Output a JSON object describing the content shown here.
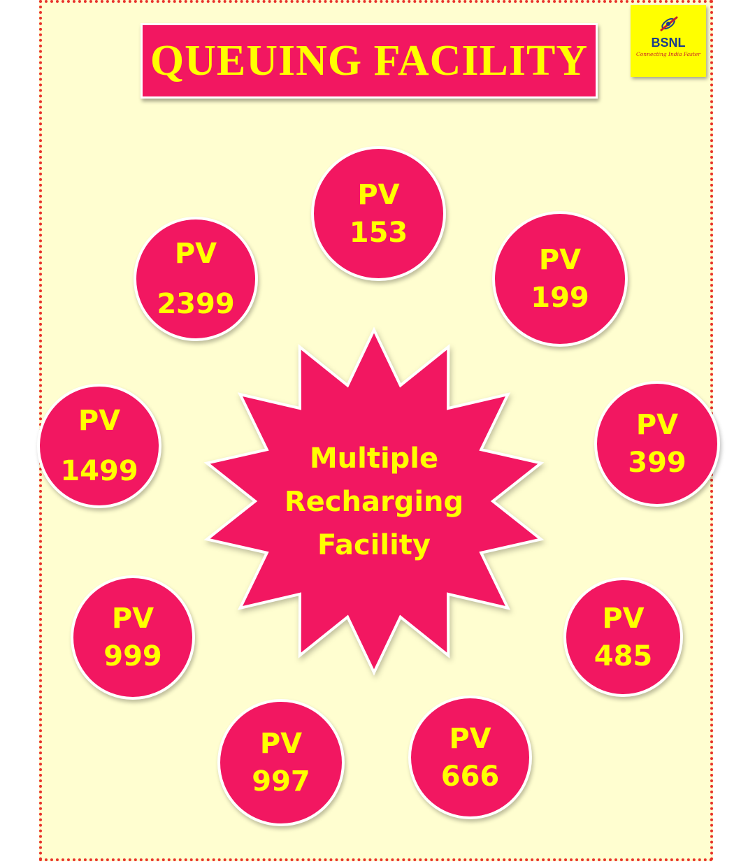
{
  "title": "QUEUING FACILITY",
  "logo": {
    "name": "BSNL",
    "tagline": "Connecting India Faster",
    "icon": "bsnl-logo-icon"
  },
  "center": {
    "lines": [
      "Multiple",
      "Recharging",
      "Facility"
    ]
  },
  "plans": [
    {
      "prefix": "PV",
      "value": "153"
    },
    {
      "prefix": "PV",
      "value": "199"
    },
    {
      "prefix": "PV",
      "value": "399"
    },
    {
      "prefix": "PV",
      "value": "485"
    },
    {
      "prefix": "PV",
      "value": "666"
    },
    {
      "prefix": "PV",
      "value": "997"
    },
    {
      "prefix": "PV",
      "value": "999"
    },
    {
      "prefix": "PV",
      "value": "1499"
    },
    {
      "prefix": "PV",
      "value": "2399"
    }
  ],
  "colors": {
    "accent": "#f21761",
    "text": "#ffff00",
    "background": "#fffed0",
    "border_dots": "#e8322b"
  }
}
